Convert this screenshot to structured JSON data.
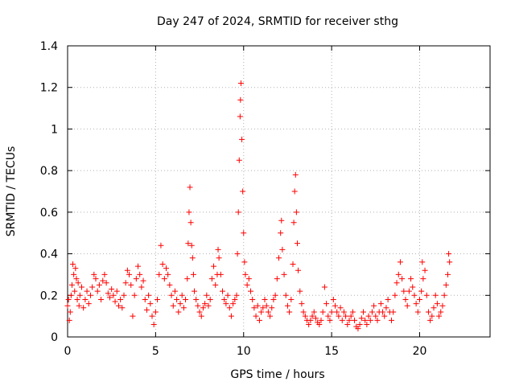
{
  "chart_data": {
    "type": "scatter",
    "title": "Day 247 of 2024, SRMTID for receiver sthg",
    "xlabel": "GPS time / hours",
    "ylabel": "SRMTID / TECUs",
    "xlim": [
      0,
      24
    ],
    "ylim": [
      0,
      1.4
    ],
    "xticks": [
      0,
      5,
      10,
      15,
      20
    ],
    "yticks": [
      0,
      0.2,
      0.4,
      0.6,
      0.8,
      1,
      1.2,
      1.4
    ],
    "ytick_labels": [
      "0",
      "0.2",
      "0.4",
      "0.6",
      "0.8",
      "1",
      "1.2",
      "1.4"
    ],
    "grid": true,
    "marker": "+",
    "color": "#ff0000",
    "series": [
      {
        "name": "SRMTID",
        "points": [
          [
            0.0,
            0.15
          ],
          [
            0.05,
            0.18
          ],
          [
            0.1,
            0.08
          ],
          [
            0.15,
            0.12
          ],
          [
            0.2,
            0.2
          ],
          [
            0.25,
            0.25
          ],
          [
            0.3,
            0.35
          ],
          [
            0.35,
            0.3
          ],
          [
            0.4,
            0.22
          ],
          [
            0.45,
            0.33
          ],
          [
            0.5,
            0.28
          ],
          [
            0.55,
            0.18
          ],
          [
            0.6,
            0.26
          ],
          [
            0.65,
            0.15
          ],
          [
            0.7,
            0.2
          ],
          [
            0.8,
            0.24
          ],
          [
            0.9,
            0.14
          ],
          [
            1.0,
            0.18
          ],
          [
            1.1,
            0.22
          ],
          [
            1.2,
            0.16
          ],
          [
            1.3,
            0.2
          ],
          [
            1.4,
            0.24
          ],
          [
            1.5,
            0.3
          ],
          [
            1.6,
            0.28
          ],
          [
            1.7,
            0.22
          ],
          [
            1.8,
            0.25
          ],
          [
            1.9,
            0.18
          ],
          [
            2.0,
            0.27
          ],
          [
            2.1,
            0.3
          ],
          [
            2.2,
            0.26
          ],
          [
            2.3,
            0.21
          ],
          [
            2.4,
            0.19
          ],
          [
            2.5,
            0.23
          ],
          [
            2.6,
            0.2
          ],
          [
            2.7,
            0.17
          ],
          [
            2.8,
            0.22
          ],
          [
            2.9,
            0.15
          ],
          [
            3.0,
            0.18
          ],
          [
            3.1,
            0.14
          ],
          [
            3.2,
            0.2
          ],
          [
            3.3,
            0.26
          ],
          [
            3.4,
            0.32
          ],
          [
            3.5,
            0.3
          ],
          [
            3.6,
            0.25
          ],
          [
            3.7,
            0.1
          ],
          [
            3.8,
            0.2
          ],
          [
            3.9,
            0.28
          ],
          [
            4.0,
            0.34
          ],
          [
            4.1,
            0.3
          ],
          [
            4.2,
            0.24
          ],
          [
            4.3,
            0.27
          ],
          [
            4.4,
            0.18
          ],
          [
            4.5,
            0.13
          ],
          [
            4.6,
            0.2
          ],
          [
            4.7,
            0.16
          ],
          [
            4.8,
            0.1
          ],
          [
            4.9,
            0.06
          ],
          [
            5.0,
            0.12
          ],
          [
            5.1,
            0.18
          ],
          [
            5.2,
            0.3
          ],
          [
            5.3,
            0.44
          ],
          [
            5.4,
            0.35
          ],
          [
            5.5,
            0.28
          ],
          [
            5.6,
            0.33
          ],
          [
            5.7,
            0.3
          ],
          [
            5.8,
            0.25
          ],
          [
            5.9,
            0.2
          ],
          [
            6.0,
            0.15
          ],
          [
            6.1,
            0.22
          ],
          [
            6.2,
            0.18
          ],
          [
            6.3,
            0.12
          ],
          [
            6.4,
            0.16
          ],
          [
            6.5,
            0.2
          ],
          [
            6.6,
            0.14
          ],
          [
            6.7,
            0.18
          ],
          [
            6.8,
            0.28
          ],
          [
            6.85,
            0.45
          ],
          [
            6.9,
            0.6
          ],
          [
            6.95,
            0.72
          ],
          [
            7.0,
            0.55
          ],
          [
            7.05,
            0.44
          ],
          [
            7.1,
            0.38
          ],
          [
            7.15,
            0.3
          ],
          [
            7.2,
            0.22
          ],
          [
            7.3,
            0.18
          ],
          [
            7.4,
            0.15
          ],
          [
            7.5,
            0.12
          ],
          [
            7.6,
            0.1
          ],
          [
            7.7,
            0.14
          ],
          [
            7.8,
            0.16
          ],
          [
            7.9,
            0.2
          ],
          [
            8.0,
            0.15
          ],
          [
            8.1,
            0.18
          ],
          [
            8.2,
            0.28
          ],
          [
            8.3,
            0.34
          ],
          [
            8.4,
            0.25
          ],
          [
            8.5,
            0.3
          ],
          [
            8.55,
            0.42
          ],
          [
            8.6,
            0.38
          ],
          [
            8.7,
            0.3
          ],
          [
            8.8,
            0.22
          ],
          [
            8.9,
            0.18
          ],
          [
            9.0,
            0.16
          ],
          [
            9.1,
            0.2
          ],
          [
            9.2,
            0.14
          ],
          [
            9.3,
            0.1
          ],
          [
            9.4,
            0.16
          ],
          [
            9.5,
            0.18
          ],
          [
            9.6,
            0.2
          ],
          [
            9.65,
            0.4
          ],
          [
            9.7,
            0.6
          ],
          [
            9.75,
            0.85
          ],
          [
            9.8,
            1.06
          ],
          [
            9.82,
            1.14
          ],
          [
            9.85,
            1.22
          ],
          [
            9.9,
            0.95
          ],
          [
            9.95,
            0.7
          ],
          [
            10.0,
            0.5
          ],
          [
            10.05,
            0.36
          ],
          [
            10.1,
            0.3
          ],
          [
            10.2,
            0.25
          ],
          [
            10.3,
            0.28
          ],
          [
            10.4,
            0.22
          ],
          [
            10.5,
            0.18
          ],
          [
            10.6,
            0.14
          ],
          [
            10.7,
            0.1
          ],
          [
            10.8,
            0.15
          ],
          [
            10.9,
            0.08
          ],
          [
            11.0,
            0.12
          ],
          [
            11.1,
            0.14
          ],
          [
            11.2,
            0.18
          ],
          [
            11.3,
            0.15
          ],
          [
            11.4,
            0.12
          ],
          [
            11.5,
            0.1
          ],
          [
            11.6,
            0.14
          ],
          [
            11.7,
            0.18
          ],
          [
            11.8,
            0.2
          ],
          [
            11.9,
            0.28
          ],
          [
            12.0,
            0.38
          ],
          [
            12.1,
            0.5
          ],
          [
            12.15,
            0.56
          ],
          [
            12.2,
            0.42
          ],
          [
            12.3,
            0.3
          ],
          [
            12.4,
            0.2
          ],
          [
            12.5,
            0.15
          ],
          [
            12.6,
            0.12
          ],
          [
            12.7,
            0.18
          ],
          [
            12.8,
            0.35
          ],
          [
            12.85,
            0.55
          ],
          [
            12.9,
            0.7
          ],
          [
            12.95,
            0.78
          ],
          [
            13.0,
            0.6
          ],
          [
            13.05,
            0.45
          ],
          [
            13.1,
            0.32
          ],
          [
            13.2,
            0.22
          ],
          [
            13.3,
            0.16
          ],
          [
            13.4,
            0.12
          ],
          [
            13.5,
            0.1
          ],
          [
            13.6,
            0.08
          ],
          [
            13.7,
            0.06
          ],
          [
            13.8,
            0.08
          ],
          [
            13.9,
            0.1
          ],
          [
            14.0,
            0.12
          ],
          [
            14.1,
            0.09
          ],
          [
            14.2,
            0.07
          ],
          [
            14.3,
            0.06
          ],
          [
            14.4,
            0.08
          ],
          [
            14.5,
            0.12
          ],
          [
            14.6,
            0.24
          ],
          [
            14.7,
            0.16
          ],
          [
            14.8,
            0.1
          ],
          [
            14.9,
            0.08
          ],
          [
            15.0,
            0.12
          ],
          [
            15.1,
            0.18
          ],
          [
            15.2,
            0.15
          ],
          [
            15.3,
            0.12
          ],
          [
            15.4,
            0.1
          ],
          [
            15.5,
            0.14
          ],
          [
            15.6,
            0.08
          ],
          [
            15.7,
            0.12
          ],
          [
            15.8,
            0.1
          ],
          [
            15.9,
            0.06
          ],
          [
            16.0,
            0.08
          ],
          [
            16.1,
            0.1
          ],
          [
            16.2,
            0.12
          ],
          [
            16.3,
            0.08
          ],
          [
            16.4,
            0.05
          ],
          [
            16.5,
            0.04
          ],
          [
            16.6,
            0.06
          ],
          [
            16.7,
            0.09
          ],
          [
            16.8,
            0.12
          ],
          [
            16.9,
            0.08
          ],
          [
            17.0,
            0.06
          ],
          [
            17.1,
            0.1
          ],
          [
            17.2,
            0.08
          ],
          [
            17.3,
            0.12
          ],
          [
            17.4,
            0.15
          ],
          [
            17.5,
            0.1
          ],
          [
            17.6,
            0.08
          ],
          [
            17.7,
            0.12
          ],
          [
            17.8,
            0.16
          ],
          [
            17.9,
            0.12
          ],
          [
            18.0,
            0.1
          ],
          [
            18.1,
            0.14
          ],
          [
            18.2,
            0.18
          ],
          [
            18.3,
            0.12
          ],
          [
            18.4,
            0.08
          ],
          [
            18.5,
            0.12
          ],
          [
            18.6,
            0.2
          ],
          [
            18.7,
            0.26
          ],
          [
            18.8,
            0.3
          ],
          [
            18.9,
            0.36
          ],
          [
            19.0,
            0.28
          ],
          [
            19.1,
            0.22
          ],
          [
            19.2,
            0.18
          ],
          [
            19.3,
            0.15
          ],
          [
            19.4,
            0.22
          ],
          [
            19.5,
            0.28
          ],
          [
            19.6,
            0.24
          ],
          [
            19.7,
            0.2
          ],
          [
            19.8,
            0.16
          ],
          [
            19.9,
            0.12
          ],
          [
            20.0,
            0.18
          ],
          [
            20.1,
            0.22
          ],
          [
            20.15,
            0.36
          ],
          [
            20.2,
            0.28
          ],
          [
            20.3,
            0.32
          ],
          [
            20.4,
            0.2
          ],
          [
            20.5,
            0.12
          ],
          [
            20.6,
            0.08
          ],
          [
            20.7,
            0.1
          ],
          [
            20.8,
            0.14
          ],
          [
            20.9,
            0.2
          ],
          [
            21.0,
            0.16
          ],
          [
            21.1,
            0.1
          ],
          [
            21.2,
            0.12
          ],
          [
            21.3,
            0.15
          ],
          [
            21.4,
            0.2
          ],
          [
            21.5,
            0.25
          ],
          [
            21.6,
            0.3
          ],
          [
            21.65,
            0.4
          ],
          [
            21.7,
            0.36
          ]
        ]
      }
    ]
  }
}
